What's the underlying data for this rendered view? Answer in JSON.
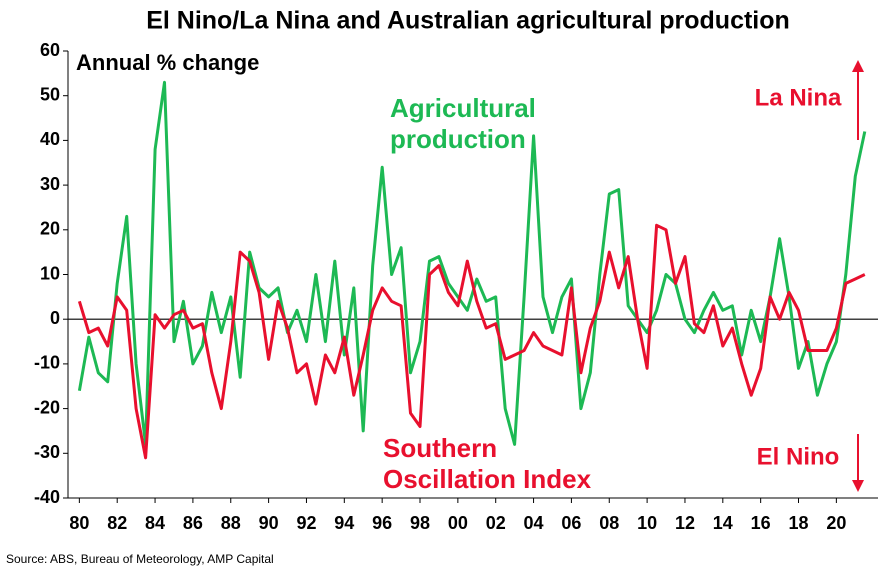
{
  "chart_data": {
    "type": "line",
    "title": "El Nino/La Nina and Australian agricultural production",
    "y_label": "Annual % change",
    "annotations": [
      "La Nina",
      "El Nino"
    ],
    "source": "Source: ABS, Bureau of Meteorology, AMP Capital",
    "x": [
      1980,
      1980.5,
      1981,
      1981.5,
      1982,
      1982.5,
      1983,
      1983.5,
      1984,
      1984.5,
      1985,
      1985.5,
      1986,
      1986.5,
      1987,
      1987.5,
      1988,
      1988.5,
      1989,
      1989.5,
      1990,
      1990.5,
      1991,
      1991.5,
      1992,
      1992.5,
      1993,
      1993.5,
      1994,
      1994.5,
      1995,
      1995.5,
      1996,
      1996.5,
      1997,
      1997.5,
      1998,
      1998.5,
      1999,
      1999.5,
      2000,
      2000.5,
      2001,
      2001.5,
      2002,
      2002.5,
      2003,
      2003.5,
      2004,
      2004.5,
      2005,
      2005.5,
      2006,
      2006.5,
      2007,
      2007.5,
      2008,
      2008.5,
      2009,
      2009.5,
      2010,
      2010.5,
      2011,
      2011.5,
      2012,
      2012.5,
      2013,
      2013.5,
      2014,
      2014.5,
      2015,
      2015.5,
      2016,
      2016.5,
      2017,
      2017.5,
      2018,
      2018.5,
      2019,
      2019.5,
      2020,
      2020.5,
      2021,
      2021.5
    ],
    "series": [
      {
        "name": "Agricultural production",
        "color": "#1db954",
        "values": [
          -16,
          -4,
          -12,
          -14,
          8,
          23,
          -10,
          -28,
          38,
          53,
          -5,
          4,
          -10,
          -6,
          6,
          -3,
          5,
          -13,
          15,
          7,
          5,
          7,
          -3,
          2,
          -5,
          10,
          -5,
          13,
          -8,
          7,
          -25,
          12,
          34,
          10,
          16,
          -12,
          -5,
          13,
          14,
          8,
          5,
          2,
          9,
          4,
          5,
          -20,
          -28,
          5,
          41,
          5,
          -3,
          5,
          9,
          -20,
          -12,
          10,
          28,
          29,
          3,
          0,
          -3,
          2,
          10,
          8,
          0,
          -3,
          2,
          6,
          2,
          3,
          -8,
          2,
          -5,
          5,
          18,
          5,
          -11,
          -5,
          -17,
          -10,
          -5,
          10,
          32,
          42
        ]
      },
      {
        "name": "Southern Oscillation Index",
        "color": "#e8102e",
        "values": [
          4,
          -3,
          -2,
          -6,
          5,
          2,
          -20,
          -31,
          1,
          -2,
          1,
          2,
          -2,
          -1,
          -12,
          -20,
          -5,
          15,
          13,
          6,
          -9,
          4,
          -2,
          -12,
          -10,
          -19,
          -8,
          -12,
          -4,
          -17,
          -8,
          2,
          7,
          4,
          3,
          -21,
          -24,
          10,
          12,
          6,
          3,
          13,
          4,
          -2,
          -1,
          -9,
          -8,
          -7,
          -3,
          -6,
          -7,
          -8,
          7,
          -12,
          -2,
          4,
          15,
          7,
          14,
          0,
          -11,
          21,
          20,
          8,
          14,
          -1,
          -3,
          3,
          -6,
          -2,
          -10,
          -17,
          -11,
          5,
          0,
          6,
          2,
          -7,
          -7,
          -7,
          -2,
          8,
          9,
          10
        ]
      }
    ],
    "xlim": [
      1979.4,
      2022.2
    ],
    "xticks": [
      {
        "value": 1980,
        "label": "80"
      },
      {
        "value": 1982,
        "label": "82"
      },
      {
        "value": 1984,
        "label": "84"
      },
      {
        "value": 1986,
        "label": "86"
      },
      {
        "value": 1988,
        "label": "88"
      },
      {
        "value": 1990,
        "label": "90"
      },
      {
        "value": 1992,
        "label": "92"
      },
      {
        "value": 1994,
        "label": "94"
      },
      {
        "value": 1996,
        "label": "96"
      },
      {
        "value": 1998,
        "label": "98"
      },
      {
        "value": 2000,
        "label": "00"
      },
      {
        "value": 2002,
        "label": "02"
      },
      {
        "value": 2004,
        "label": "04"
      },
      {
        "value": 2006,
        "label": "06"
      },
      {
        "value": 2008,
        "label": "08"
      },
      {
        "value": 2010,
        "label": "10"
      },
      {
        "value": 2012,
        "label": "12"
      },
      {
        "value": 2014,
        "label": "14"
      },
      {
        "value": 2016,
        "label": "16"
      },
      {
        "value": 2018,
        "label": "18"
      },
      {
        "value": 2020,
        "label": "20"
      }
    ],
    "ylim": [
      -40,
      60
    ],
    "yticks": [
      -40,
      -30,
      -20,
      -10,
      0,
      10,
      20,
      30,
      40,
      50,
      60
    ]
  }
}
